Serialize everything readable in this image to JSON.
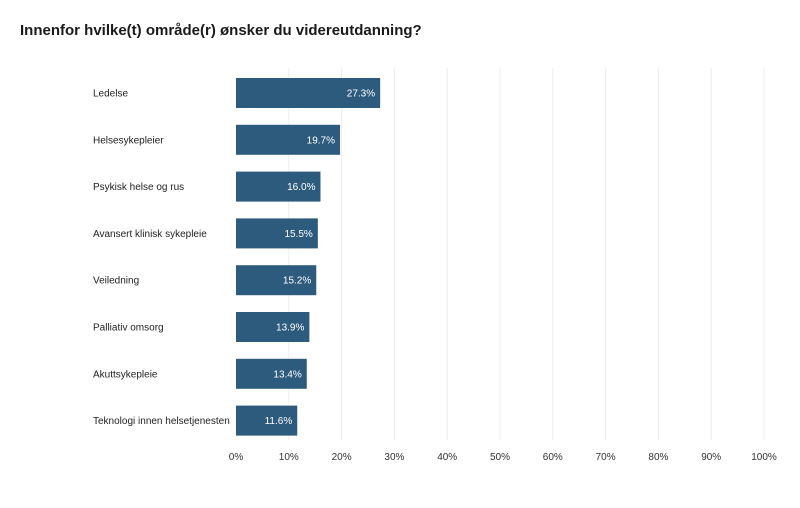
{
  "chart_data": {
    "type": "bar",
    "orientation": "horizontal",
    "title": "Innenfor hvilke(t) område(r) ønsker du videreutdanning?",
    "xlabel": "",
    "ylabel": "",
    "xlim": [
      0,
      100
    ],
    "grid": true,
    "categories": [
      "Ledelse",
      "Helsesykepleier",
      "Psykisk helse og rus",
      "Avansert klinisk sykepleie",
      "Veiledning",
      "Palliativ omsorg",
      "Akuttsykepleie",
      "Teknologi innen helsetjenesten"
    ],
    "values": [
      27.3,
      19.7,
      16.0,
      15.5,
      15.2,
      13.9,
      13.4,
      11.6
    ],
    "value_labels": [
      "27.3%",
      "19.7%",
      "16.0%",
      "15.5%",
      "15.2%",
      "13.9%",
      "13.4%",
      "11.6%"
    ],
    "ticks": [
      0,
      10,
      20,
      30,
      40,
      50,
      60,
      70,
      80,
      90,
      100
    ],
    "tick_labels": [
      "0%",
      "10%",
      "20%",
      "30%",
      "40%",
      "50%",
      "60%",
      "70%",
      "80%",
      "90%",
      "100%"
    ],
    "bar_color": "#2d5b7e",
    "grid_color": "#ececec"
  }
}
